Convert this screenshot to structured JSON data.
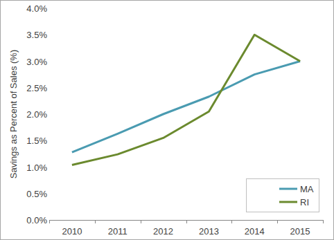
{
  "chart_data": {
    "type": "line",
    "y_label": "Savings as Percent of Sales (%)",
    "categories": [
      "2010",
      "2011",
      "2012",
      "2013",
      "2014",
      "2015"
    ],
    "series": [
      {
        "name": "MA",
        "color": "#4a9bb1",
        "values": [
          1.28,
          1.63,
          2.0,
          2.33,
          2.75,
          3.0
        ]
      },
      {
        "name": "RI",
        "color": "#6b8a2e",
        "values": [
          1.04,
          1.24,
          1.55,
          2.05,
          3.5,
          3.0
        ]
      }
    ],
    "ylim": [
      0,
      4
    ],
    "yticks": [
      {
        "value": 0,
        "label": "0.0%"
      },
      {
        "value": 0.5,
        "label": "0.5%"
      },
      {
        "value": 1,
        "label": "1.0%"
      },
      {
        "value": 1.5,
        "label": "1.5%"
      },
      {
        "value": 2,
        "label": "2.0%"
      },
      {
        "value": 2.5,
        "label": "2.5%"
      },
      {
        "value": 3,
        "label": "3.0%"
      },
      {
        "value": 3.5,
        "label": "3.5%"
      },
      {
        "value": 4,
        "label": "4.0%"
      }
    ],
    "grid": false,
    "legend": "lower right"
  }
}
